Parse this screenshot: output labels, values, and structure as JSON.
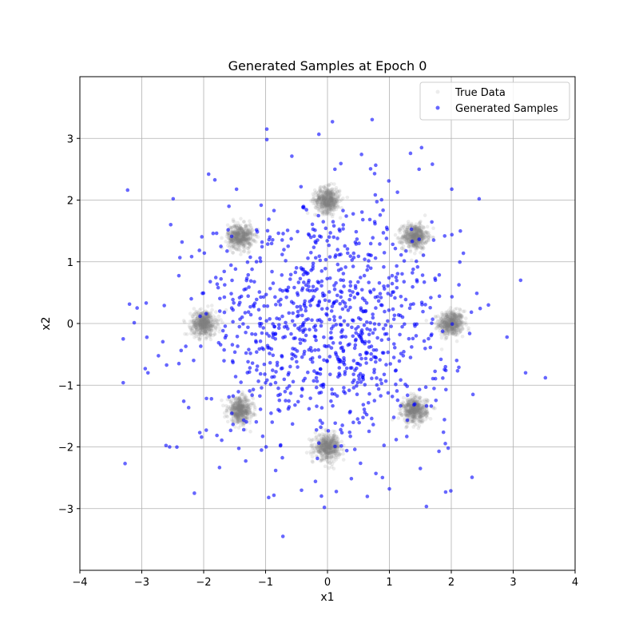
{
  "chart_data": {
    "type": "scatter",
    "title": "Generated Samples at Epoch 0",
    "xlabel": "x1",
    "ylabel": "x2",
    "xlim": [
      -4,
      4
    ],
    "ylim": [
      -4,
      4
    ],
    "xticks": [
      -4,
      -3,
      -2,
      -1,
      0,
      1,
      2,
      3,
      4
    ],
    "yticks": [
      -3,
      -2,
      -1,
      0,
      1,
      2,
      3
    ],
    "x_tick_labels": [
      "−4",
      "−3",
      "−2",
      "−1",
      "0",
      "1",
      "2",
      "3",
      "4"
    ],
    "y_tick_labels": [
      "−3",
      "−2",
      "−1",
      "0",
      "1",
      "2",
      "3"
    ],
    "grid": true,
    "legend_position": "top-right",
    "series": [
      {
        "name": "True Data",
        "color": "#808080",
        "alpha": 0.15,
        "distribution": "mixture of 8 gaussians",
        "centers": [
          [
            2,
            0
          ],
          [
            1.41,
            1.41
          ],
          [
            0,
            2
          ],
          [
            -1.41,
            1.41
          ],
          [
            -2,
            0
          ],
          [
            -1.41,
            -1.41
          ],
          [
            0,
            -2
          ],
          [
            1.41,
            -1.41
          ]
        ],
        "std": 0.1,
        "points_per_center": 500
      },
      {
        "name": "Generated Samples",
        "color": "#0000ff",
        "alpha": 0.6,
        "distribution": "isotropic gaussian",
        "center": [
          0,
          0
        ],
        "std": 1.0,
        "count": 1000,
        "sample_points": [
          [
            0.08,
            3.27
          ],
          [
            -0.98,
            3.15
          ],
          [
            -0.98,
            2.98
          ],
          [
            0.55,
            2.74
          ],
          [
            1.52,
            2.85
          ],
          [
            1.48,
            2.5
          ],
          [
            2.45,
            2.02
          ],
          [
            -1.92,
            2.42
          ],
          [
            -2.35,
            1.32
          ],
          [
            3.12,
            0.7
          ],
          [
            2.9,
            -0.22
          ],
          [
            3.2,
            -0.8
          ],
          [
            3.52,
            -0.88
          ],
          [
            -3.3,
            -0.25
          ],
          [
            -3.3,
            -0.96
          ],
          [
            -2.9,
            -0.8
          ],
          [
            -3.27,
            -2.27
          ],
          [
            -2.55,
            -2.0
          ],
          [
            -2.15,
            -2.75
          ],
          [
            -0.72,
            -3.45
          ],
          [
            -0.05,
            -2.98
          ],
          [
            1.0,
            -2.68
          ],
          [
            1.5,
            -2.35
          ],
          [
            1.95,
            -2.02
          ],
          [
            2.35,
            -1.15
          ],
          [
            -0.95,
            -2.82
          ],
          [
            0.12,
            2.5
          ],
          [
            -2.2,
            0.4
          ],
          [
            2.6,
            0.3
          ],
          [
            -2.4,
            -0.65
          ]
        ]
      }
    ]
  }
}
